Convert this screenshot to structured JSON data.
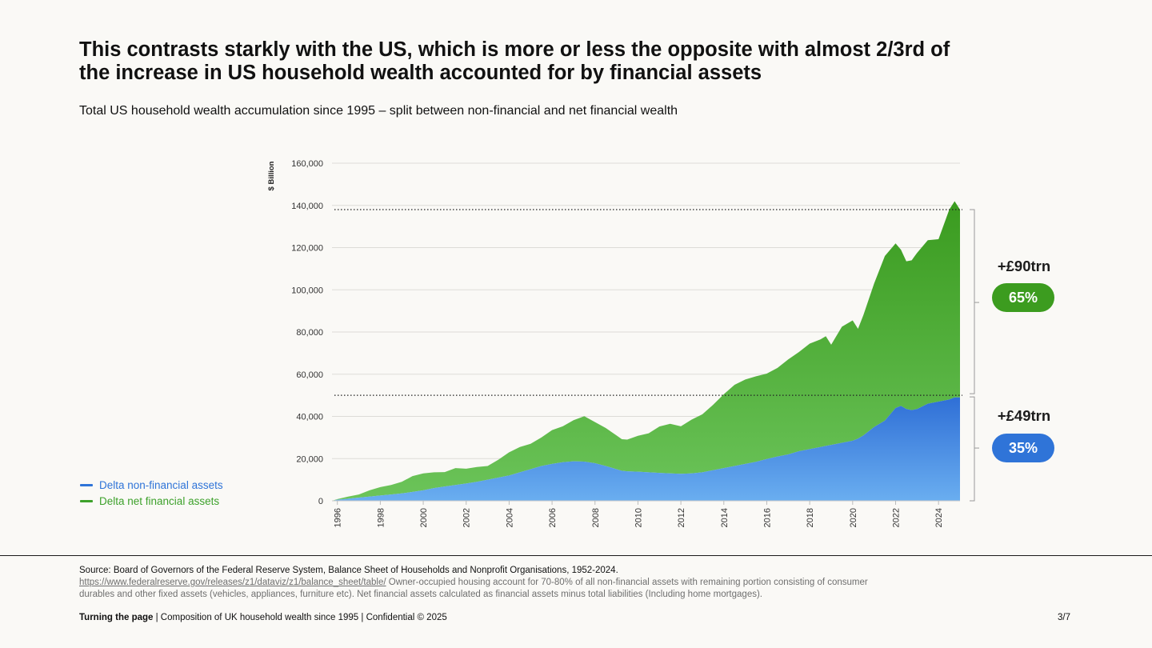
{
  "title": "This contrasts starkly with the US, which is more or less the opposite with almost 2/3rd of the increase in US household wealth accounted for by financial assets",
  "subtitle": "Total US household wealth accumulation since 1995 – split between non-financial and net financial wealth",
  "legend": [
    {
      "label": "Delta non-financial assets",
      "color": "#2f74d8"
    },
    {
      "label": "Delta net financial assets",
      "color": "#3da12b"
    }
  ],
  "callouts": {
    "financial_total": "+£90trn",
    "financial_share": "65%",
    "nonfinancial_total": "+£49trn",
    "nonfinancial_share": "35%"
  },
  "source": {
    "line1": "Source: Board of Governors of the Federal Reserve System, Balance Sheet of Households and Nonprofit Organisations, 1952-2024.",
    "link": "https://www.federalreserve.gov/releases/z1/dataviz/z1/balance_sheet/table/",
    "note": " Owner-occupied housing account for 70-80% of all non-financial assets with remaining portion consisting of consumer durables and other fixed assets (vehicles, appliances, furniture etc). Net financial assets calculated as financial assets minus total liabilities (Including home mortgages)."
  },
  "footer": {
    "bold": "Turning the page",
    "rest": " | Composition of UK household wealth since 1995 | Confidential © 2025",
    "page": "3/7"
  },
  "colors": {
    "nonfinancial_top": "#2f6fd6",
    "nonfinancial_bottom": "#6aaef0",
    "financial_top": "#3a9b1f",
    "financial_bottom": "#6cc45a",
    "callout_green": "#3c9c1f",
    "callout_blue": "#2f74d8"
  },
  "chart_data": {
    "type": "area",
    "stacked": true,
    "ylabel": "$ Billion",
    "xlabel": "",
    "ylim": [
      0,
      160000
    ],
    "xlim": [
      1995.75,
      2025.0
    ],
    "yticks": [
      0,
      20000,
      40000,
      60000,
      80000,
      100000,
      120000,
      140000,
      160000
    ],
    "ytick_labels": [
      "0",
      "20,000",
      "40,000",
      "60,000",
      "80,000",
      "100,000",
      "120,000",
      "140,000",
      "160,000"
    ],
    "xticks": [
      1996,
      1998,
      2000,
      2002,
      2004,
      2006,
      2008,
      2010,
      2012,
      2014,
      2016,
      2018,
      2020,
      2022,
      2024
    ],
    "xtick_labels": [
      "1996",
      "1998",
      "2000",
      "2002",
      "2004",
      "2006",
      "2008",
      "2010",
      "2012",
      "2014",
      "2016",
      "2018",
      "2020",
      "2022",
      "2024"
    ],
    "reference_lines": [
      138000,
      50000
    ],
    "grid": true,
    "legend_position": "bottom-left",
    "x": [
      1995.75,
      1996.0,
      1996.5,
      1997.0,
      1997.5,
      1998.0,
      1998.5,
      1999.0,
      1999.5,
      2000.0,
      2000.5,
      2001.0,
      2001.5,
      2002.0,
      2002.5,
      2003.0,
      2003.5,
      2004.0,
      2004.5,
      2005.0,
      2005.5,
      2006.0,
      2006.5,
      2007.0,
      2007.5,
      2008.0,
      2008.5,
      2009.0,
      2009.25,
      2009.5,
      2010.0,
      2010.5,
      2011.0,
      2011.5,
      2012.0,
      2012.5,
      2013.0,
      2013.5,
      2014.0,
      2014.5,
      2015.0,
      2015.5,
      2016.0,
      2016.5,
      2017.0,
      2017.5,
      2018.0,
      2018.5,
      2018.75,
      2019.0,
      2019.5,
      2020.0,
      2020.25,
      2020.5,
      2021.0,
      2021.5,
      2022.0,
      2022.25,
      2022.5,
      2022.75,
      2023.0,
      2023.5,
      2024.0,
      2024.5,
      2024.75,
      2025.0
    ],
    "series": [
      {
        "name": "Delta non-financial assets",
        "values": [
          0,
          500,
          1000,
          1500,
          2000,
          2500,
          3000,
          3500,
          4200,
          5000,
          6000,
          6800,
          7500,
          8200,
          9000,
          10000,
          11000,
          12000,
          13500,
          15000,
          16500,
          17500,
          18300,
          18700,
          18600,
          17800,
          16500,
          15000,
          14200,
          14000,
          13800,
          13500,
          13200,
          13000,
          12800,
          13000,
          13500,
          14500,
          15500,
          16500,
          17500,
          18500,
          19800,
          21000,
          22000,
          23500,
          24500,
          25500,
          26000,
          26500,
          27500,
          28500,
          29500,
          31000,
          35000,
          38000,
          44000,
          45000,
          43500,
          43000,
          43500,
          46000,
          47000,
          48000,
          49000,
          49000
        ]
      },
      {
        "name": "Delta net financial assets",
        "values": [
          0,
          300,
          1000,
          1500,
          3000,
          4000,
          4500,
          5500,
          7500,
          8000,
          7500,
          6800,
          8000,
          7000,
          7000,
          6500,
          8500,
          11000,
          12000,
          12000,
          13500,
          16000,
          17000,
          19500,
          21500,
          19500,
          18000,
          16000,
          15000,
          15000,
          17000,
          18500,
          22000,
          23500,
          22500,
          25500,
          27500,
          31000,
          35000,
          38500,
          40000,
          40500,
          40500,
          42000,
          45000,
          47000,
          50000,
          51000,
          52000,
          47500,
          55000,
          57000,
          52000,
          57000,
          68000,
          78000,
          78000,
          74000,
          70000,
          71000,
          74000,
          77500,
          77000,
          90000,
          93000,
          89000
        ]
      }
    ]
  }
}
